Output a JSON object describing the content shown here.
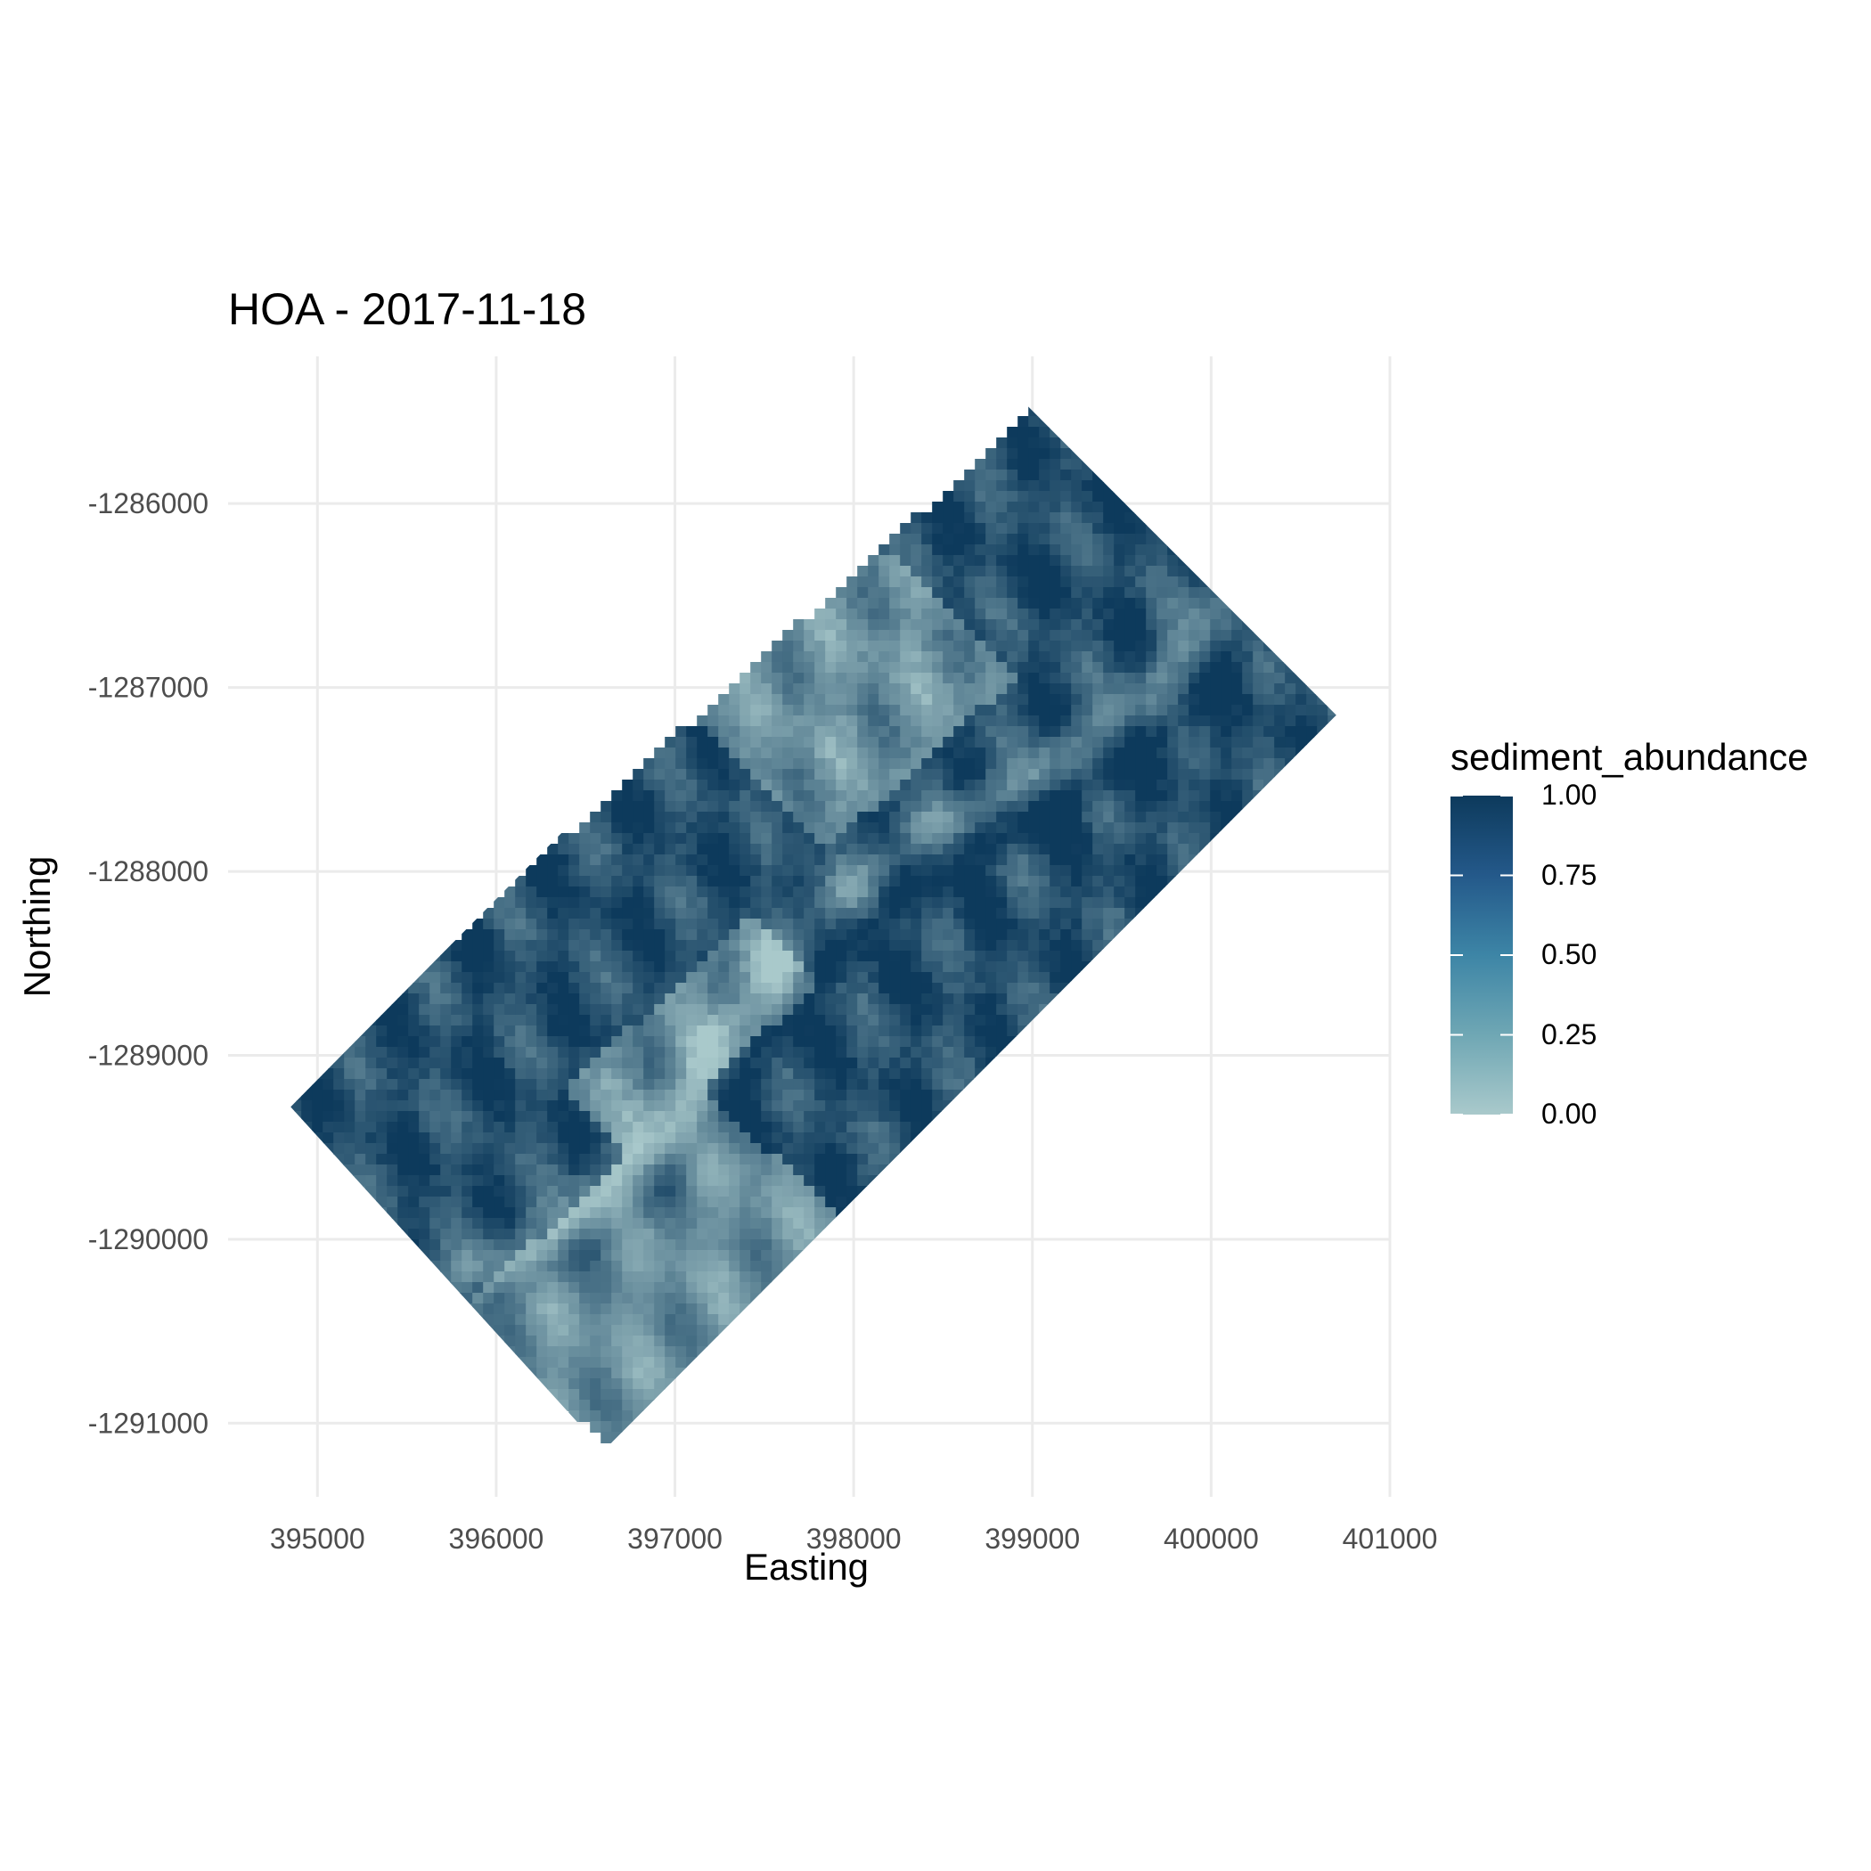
{
  "chart_data": {
    "type": "heatmap",
    "title": "HOA - 2017-11-18",
    "xlabel": "Easting",
    "ylabel": "Northing",
    "xlim": [
      394500,
      401000
    ],
    "ylim": [
      -1291400,
      -1285200
    ],
    "x_ticks": [
      395000,
      396000,
      397000,
      398000,
      399000,
      400000,
      401000
    ],
    "x_tick_labels": [
      "395000",
      "396000",
      "397000",
      "398000",
      "399000",
      "400000",
      "401000"
    ],
    "y_ticks": [
      -1286000,
      -1287000,
      -1288000,
      -1289000,
      -1290000,
      -1291000
    ],
    "y_tick_labels": [
      "-1286000",
      "-1287000",
      "-1288000",
      "-1289000",
      "-1290000",
      "-1291000"
    ],
    "grid": true,
    "footprint_corners": [
      [
        394850,
        -1289280
      ],
      [
        398850,
        -1285350
      ],
      [
        400700,
        -1287150
      ],
      [
        396600,
        -1291150
      ]
    ],
    "colorbar": {
      "title": "sediment_abundance",
      "ticks": [
        0.0,
        0.25,
        0.5,
        0.75,
        1.0
      ],
      "tick_labels": [
        "0.00",
        "0.25",
        "0.50",
        "0.75",
        "1.00"
      ],
      "low_color": "#a9c9cb",
      "high_color": "#0d3a5c",
      "placement": "right"
    }
  }
}
